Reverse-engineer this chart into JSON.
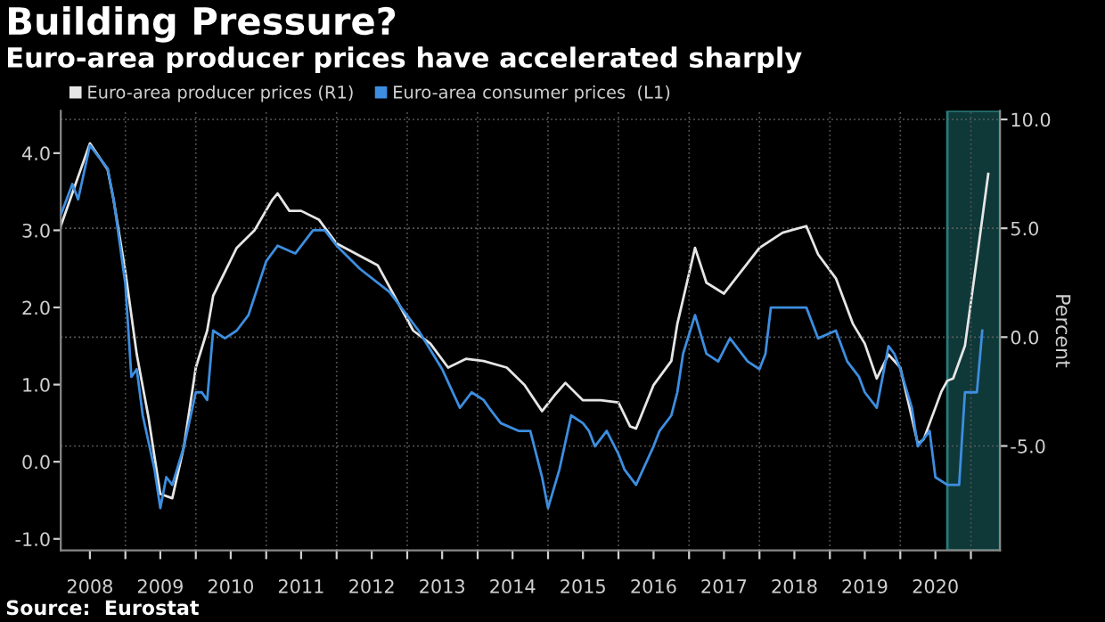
{
  "chart_data": {
    "type": "line",
    "title": "Building Pressure?",
    "subtitle": "Euro-area producer prices have accelerated sharply",
    "y2label": "Percent",
    "series": [
      {
        "name": "Euro-area producer prices (R1)",
        "color": "#e6e6e6",
        "axis": "y2",
        "x": [
          "2008-02",
          "2008-07",
          "2008-10",
          "2008-11",
          "2009-01",
          "2009-03",
          "2009-05",
          "2009-06",
          "2009-07",
          "2009-09",
          "2009-11",
          "2010-01",
          "2010-03",
          "2010-04",
          "2010-08",
          "2010-11",
          "2011-02",
          "2011-03",
          "2011-05",
          "2011-07",
          "2011-10",
          "2012-01",
          "2012-08",
          "2013-02",
          "2013-05",
          "2013-08",
          "2013-11",
          "2014-02",
          "2014-06",
          "2014-09",
          "2014-12",
          "2015-02",
          "2015-04",
          "2015-07",
          "2015-10",
          "2016-01",
          "2016-03",
          "2016-04",
          "2016-07",
          "2016-10",
          "2016-11",
          "2017-02",
          "2017-04",
          "2017-07",
          "2018-01",
          "2018-05",
          "2018-09",
          "2018-11",
          "2019-02",
          "2019-05",
          "2019-07",
          "2019-09",
          "2019-11",
          "2020-01",
          "2020-04",
          "2020-05",
          "2020-08",
          "2020-09",
          "2020-10",
          "2020-12",
          "2021-02",
          "2021-04"
        ],
        "values": [
          5.1,
          8.9,
          7.7,
          6.3,
          3.0,
          -0.8,
          -3.7,
          -5.5,
          -7.2,
          -7.4,
          -5.0,
          -1.4,
          0.3,
          1.9,
          4.1,
          4.9,
          6.3,
          6.6,
          5.8,
          5.8,
          5.4,
          4.3,
          3.3,
          0.3,
          -0.3,
          -1.4,
          -1.0,
          -1.1,
          -1.4,
          -2.2,
          -3.4,
          -2.7,
          -2.1,
          -2.9,
          -2.9,
          -3.0,
          -4.1,
          -4.2,
          -2.2,
          -1.1,
          0.6,
          4.1,
          2.5,
          2.0,
          4.1,
          4.8,
          5.1,
          3.8,
          2.7,
          0.6,
          -0.3,
          -1.9,
          -0.8,
          -1.4,
          -4.9,
          -4.7,
          -2.5,
          -2.0,
          -1.9,
          -0.4,
          3.6,
          7.5
        ]
      },
      {
        "name": "Euro-area consumer prices  (L1)",
        "color": "#3d8ee0",
        "axis": "y",
        "x": [
          "2008-02",
          "2008-04",
          "2008-05",
          "2008-07",
          "2008-10",
          "2008-11",
          "2009-01",
          "2009-02",
          "2009-03",
          "2009-04",
          "2009-06",
          "2009-07",
          "2009-08",
          "2009-09",
          "2009-11",
          "2010-01",
          "2010-02",
          "2010-03",
          "2010-04",
          "2010-06",
          "2010-08",
          "2010-10",
          "2011-01",
          "2011-03",
          "2011-06",
          "2011-09",
          "2011-11",
          "2012-01",
          "2012-05",
          "2012-10",
          "2013-03",
          "2013-07",
          "2013-10",
          "2013-12",
          "2014-02",
          "2014-03",
          "2014-05",
          "2014-08",
          "2014-10",
          "2014-12",
          "2015-01",
          "2015-03",
          "2015-05",
          "2015-07",
          "2015-08",
          "2015-09",
          "2015-11",
          "2016-01",
          "2016-02",
          "2016-04",
          "2016-07",
          "2016-08",
          "2016-10",
          "2016-11",
          "2016-12",
          "2017-02",
          "2017-04",
          "2017-06",
          "2017-08",
          "2017-09",
          "2017-11",
          "2018-01",
          "2018-02",
          "2018-03",
          "2018-06",
          "2018-09",
          "2018-11",
          "2019-02",
          "2019-04",
          "2019-06",
          "2019-07",
          "2019-09",
          "2019-11",
          "2019-12",
          "2020-01",
          "2020-03",
          "2020-04",
          "2020-06",
          "2020-07",
          "2020-09",
          "2020-11",
          "2020-12",
          "2021-02",
          "2021-03"
        ],
        "values": [
          3.2,
          3.6,
          3.4,
          4.1,
          3.8,
          3.4,
          2.3,
          1.1,
          1.2,
          0.6,
          -0.1,
          -0.6,
          -0.2,
          -0.3,
          0.2,
          0.9,
          0.9,
          0.8,
          1.7,
          1.6,
          1.7,
          1.9,
          2.6,
          2.8,
          2.7,
          3.0,
          3.0,
          2.8,
          2.5,
          2.2,
          1.7,
          1.2,
          0.7,
          0.9,
          0.8,
          0.7,
          0.5,
          0.4,
          0.4,
          -0.2,
          -0.6,
          -0.1,
          0.6,
          0.5,
          0.4,
          0.2,
          0.4,
          0.1,
          -0.1,
          -0.3,
          0.2,
          0.4,
          0.6,
          0.9,
          1.4,
          1.9,
          1.4,
          1.3,
          1.6,
          1.5,
          1.3,
          1.2,
          1.4,
          2.0,
          2.0,
          2.0,
          1.6,
          1.7,
          1.3,
          1.1,
          0.9,
          0.7,
          1.5,
          1.4,
          1.2,
          0.7,
          0.2,
          0.4,
          -0.2,
          -0.3,
          -0.3,
          0.9,
          0.9,
          1.7
        ]
      }
    ],
    "xlim": [
      "2008-02",
      "2021-06"
    ],
    "xticks": [
      {
        "value": "2008-07-01",
        "label": "2008"
      },
      {
        "value": "2009-01-01",
        "label": null
      },
      {
        "value": "2009-07-01",
        "label": "2009"
      },
      {
        "value": "2010-01-01",
        "label": null
      },
      {
        "value": "2010-07-01",
        "label": "2010"
      },
      {
        "value": "2011-01-01",
        "label": null
      },
      {
        "value": "2011-07-01",
        "label": "2011"
      },
      {
        "value": "2012-01-01",
        "label": null
      },
      {
        "value": "2012-07-01",
        "label": "2012"
      },
      {
        "value": "2013-01-01",
        "label": null
      },
      {
        "value": "2013-07-01",
        "label": "2013"
      },
      {
        "value": "2014-01-01",
        "label": null
      },
      {
        "value": "2014-07-01",
        "label": "2014"
      },
      {
        "value": "2015-01-01",
        "label": null
      },
      {
        "value": "2015-07-01",
        "label": "2015"
      },
      {
        "value": "2016-01-01",
        "label": null
      },
      {
        "value": "2016-07-01",
        "label": "2016"
      },
      {
        "value": "2017-01-01",
        "label": null
      },
      {
        "value": "2017-07-01",
        "label": "2017"
      },
      {
        "value": "2018-01-01",
        "label": null
      },
      {
        "value": "2018-07-01",
        "label": "2018"
      },
      {
        "value": "2019-01-01",
        "label": null
      },
      {
        "value": "2019-07-01",
        "label": "2019"
      },
      {
        "value": "2020-01-01",
        "label": null
      },
      {
        "value": "2020-07-01",
        "label": "2020"
      },
      {
        "value": "2021-01-01",
        "label": null
      }
    ],
    "ylim": [
      -1.15,
      4.55
    ],
    "yticks": [
      {
        "value": -1,
        "label": "-1.0"
      },
      {
        "value": 0,
        "label": "0.0"
      },
      {
        "value": 1,
        "label": "1.0"
      },
      {
        "value": 2,
        "label": "2.0"
      },
      {
        "value": 3,
        "label": "3.0"
      },
      {
        "value": 4,
        "label": "4.0"
      }
    ],
    "y2lim": [
      -9.8,
      10.4
    ],
    "y2ticks": [
      {
        "value": -5,
        "label": "-5.0"
      },
      {
        "value": 0,
        "label": "0.0"
      },
      {
        "value": 5,
        "label": "5.0"
      },
      {
        "value": 10,
        "label": "10.0"
      }
    ],
    "bands": [
      {
        "axis": "x",
        "from": "2020-09",
        "to": "2021-06",
        "color": "#0f3838"
      }
    ],
    "grid": true,
    "legend": "top left",
    "marker": "none",
    "line_style": "solid",
    "annotations": [
      "Source:  Eurostat"
    ]
  }
}
